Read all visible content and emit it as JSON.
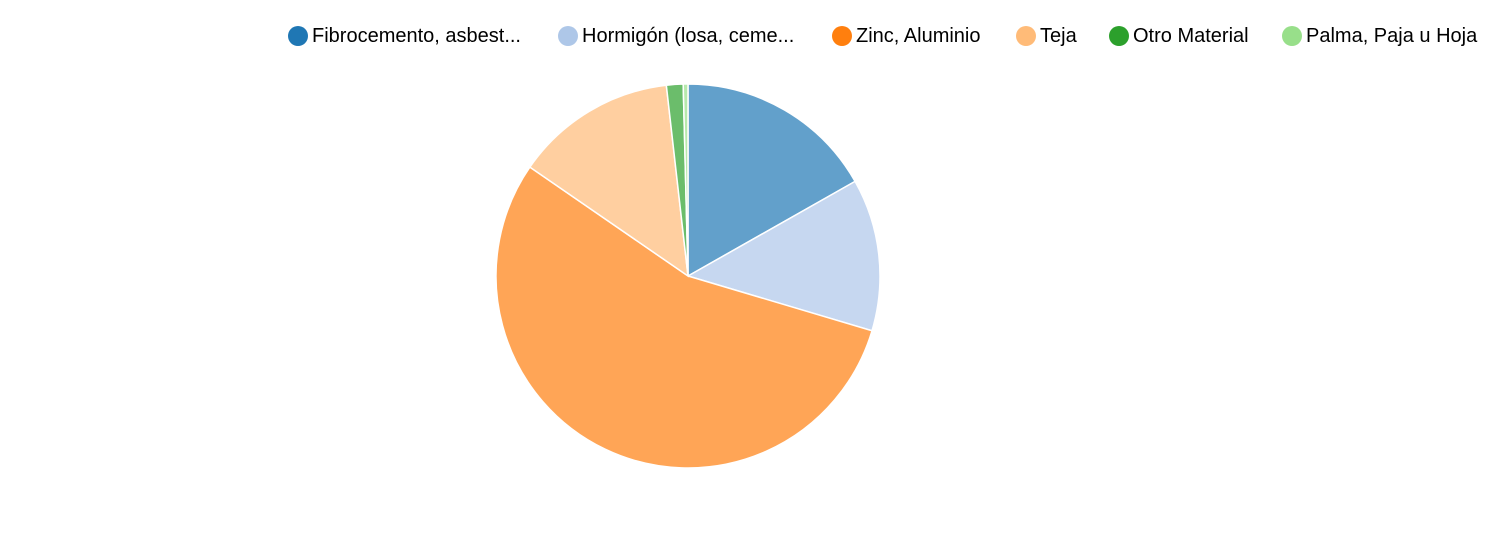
{
  "chart_data": {
    "type": "pie",
    "title": "",
    "legend_position": "top",
    "slices": [
      {
        "label": "Fibrocemento, asbest...",
        "value": 16.8,
        "legend_color": "#1f77b4",
        "fill": "#62a0cb"
      },
      {
        "label": "Hormigón (losa, ceme...",
        "value": 12.8,
        "legend_color": "#aec7e8",
        "fill": "#c6d7f0"
      },
      {
        "label": "Zinc, Aluminio",
        "value": 55.0,
        "legend_color": "#ff7f0e",
        "fill": "#ffa556"
      },
      {
        "label": "Teja",
        "value": 13.6,
        "legend_color": "#ffbb78",
        "fill": "#ffcfa0"
      },
      {
        "label": "Otro Material",
        "value": 1.4,
        "legend_color": "#2ca02c",
        "fill": "#6bbd6b"
      },
      {
        "label": "Palma, Paja u Hoja",
        "value": 0.4,
        "legend_color": "#98df8a",
        "fill": "#b7e9ad"
      }
    ]
  }
}
